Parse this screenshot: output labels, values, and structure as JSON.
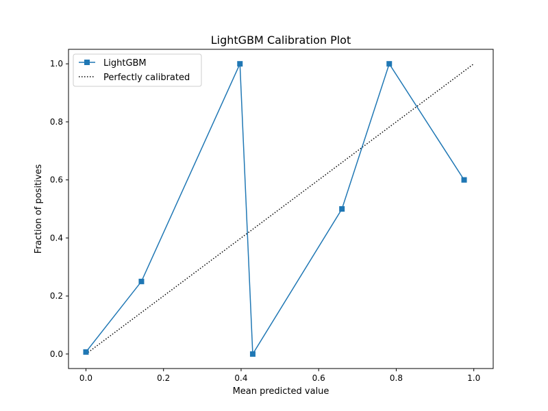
{
  "chart_data": {
    "type": "line",
    "title": "LightGBM Calibration Plot",
    "xlabel": "Mean predicted value",
    "ylabel": "Fraction of positives",
    "xlim": [
      -0.045,
      1.05
    ],
    "ylim": [
      -0.05,
      1.05
    ],
    "xticks": [
      0.0,
      0.2,
      0.4,
      0.6,
      0.8,
      1.0
    ],
    "yticks": [
      0.0,
      0.2,
      0.4,
      0.6,
      0.8,
      1.0
    ],
    "xtick_labels": [
      "0.0",
      "0.2",
      "0.4",
      "0.6",
      "0.8",
      "1.0"
    ],
    "ytick_labels": [
      "0.0",
      "0.2",
      "0.4",
      "0.6",
      "0.8",
      "1.0"
    ],
    "grid": false,
    "legend_position": "top-left",
    "series": [
      {
        "name": "LightGBM",
        "color": "#1f77b4",
        "marker": "square",
        "x": [
          0.0,
          0.143,
          0.397,
          0.43,
          0.66,
          0.782,
          0.975
        ],
        "y": [
          0.007,
          0.25,
          1.0,
          0.0,
          0.5,
          1.0,
          0.6
        ]
      },
      {
        "name": "Perfectly calibrated",
        "color": "#000000",
        "style": "dotted",
        "x": [
          0.0,
          1.0
        ],
        "y": [
          0.0,
          1.0
        ]
      }
    ]
  }
}
